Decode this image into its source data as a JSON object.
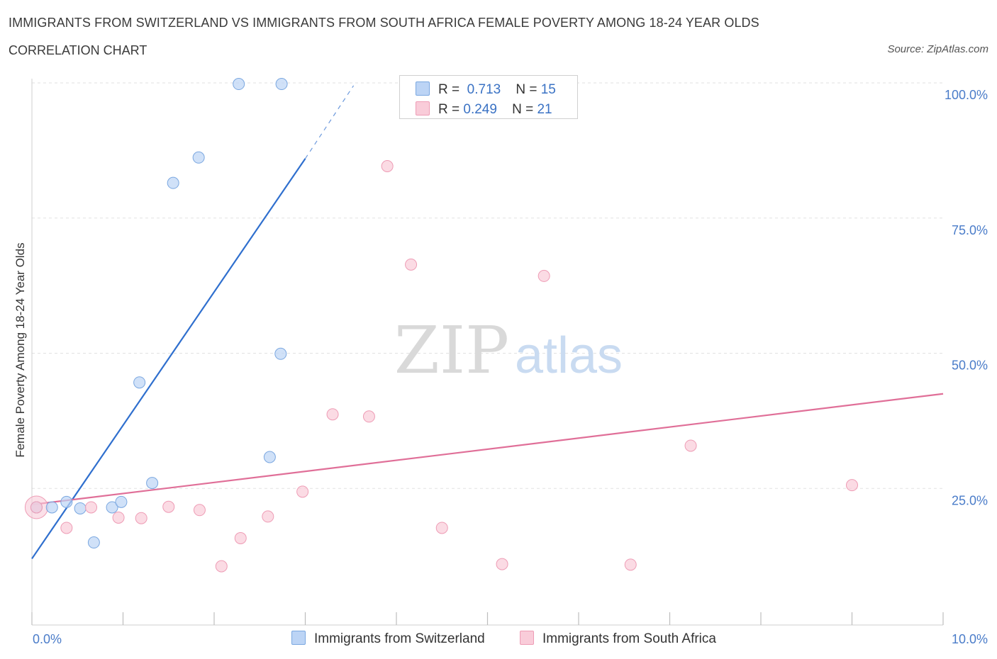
{
  "header": {
    "title": "IMMIGRANTS FROM SWITZERLAND VS IMMIGRANTS FROM SOUTH AFRICA FEMALE POVERTY AMONG 18-24 YEAR OLDS",
    "subtitle": "CORRELATION CHART",
    "source": "Source: ZipAtlas.com"
  },
  "watermark": {
    "zip": "ZIP",
    "atlas": "atlas"
  },
  "legend": {
    "r_label": "R =",
    "n_label": "N =",
    "series1": {
      "r": "0.713",
      "n": "15"
    },
    "series2": {
      "r": "0.249",
      "n": "21"
    }
  },
  "colors": {
    "switzerland_fill": "#bcd4f5",
    "switzerland_stroke": "#7aa7e0",
    "switzerland_line": "#2f6fce",
    "south_africa_fill": "#f9ccd9",
    "south_africa_stroke": "#ee9cb5",
    "south_africa_line": "#e06f98",
    "tick_text": "#4a7cc9"
  },
  "chart_data": {
    "type": "scatter",
    "title": "IMMIGRANTS FROM SWITZERLAND VS IMMIGRANTS FROM SOUTH AFRICA FEMALE POVERTY AMONG 18-24 YEAR OLDS",
    "xlabel": "",
    "ylabel": "Female Poverty Among 18-24 Year Olds",
    "xlim": [
      0,
      10
    ],
    "ylim": [
      0,
      100
    ],
    "x_tick_labels": [
      "0.0%",
      "10.0%"
    ],
    "y_tick_labels": [
      "100.0%",
      "75.0%",
      "50.0%",
      "25.0%"
    ],
    "y_ticks": [
      100,
      75,
      50,
      25
    ],
    "grid": true,
    "legend_placement": "top-center",
    "series": [
      {
        "name": "Immigrants from Switzerland",
        "r": 0.713,
        "n": 15,
        "points": [
          {
            "x": 0.05,
            "y": 21.5
          },
          {
            "x": 0.22,
            "y": 21.5
          },
          {
            "x": 0.38,
            "y": 22.5
          },
          {
            "x": 0.53,
            "y": 21.3
          },
          {
            "x": 0.68,
            "y": 15.0
          },
          {
            "x": 0.88,
            "y": 21.5
          },
          {
            "x": 0.98,
            "y": 22.5
          },
          {
            "x": 1.18,
            "y": 44.6
          },
          {
            "x": 1.32,
            "y": 26.0
          },
          {
            "x": 1.55,
            "y": 81.5
          },
          {
            "x": 1.83,
            "y": 86.2
          },
          {
            "x": 2.27,
            "y": 99.8
          },
          {
            "x": 2.61,
            "y": 30.8
          },
          {
            "x": 2.73,
            "y": 49.9
          },
          {
            "x": 2.74,
            "y": 99.8
          }
        ],
        "trend": {
          "x1": 0.0,
          "y1": 12.0,
          "x2": 3.0,
          "y2": 86.0,
          "dash_to_x": 3.53,
          "dash_to_y": 99.5
        }
      },
      {
        "name": "Immigrants from South Africa",
        "r": 0.249,
        "n": 21,
        "points": [
          {
            "x": 0.05,
            "y": 21.5
          },
          {
            "x": 0.38,
            "y": 17.7
          },
          {
            "x": 0.65,
            "y": 21.5
          },
          {
            "x": 0.95,
            "y": 19.6
          },
          {
            "x": 1.2,
            "y": 19.5
          },
          {
            "x": 1.5,
            "y": 21.6
          },
          {
            "x": 1.84,
            "y": 21.0
          },
          {
            "x": 2.08,
            "y": 10.6
          },
          {
            "x": 2.29,
            "y": 15.8
          },
          {
            "x": 2.59,
            "y": 19.8
          },
          {
            "x": 2.97,
            "y": 24.4
          },
          {
            "x": 3.3,
            "y": 38.7
          },
          {
            "x": 3.7,
            "y": 38.3
          },
          {
            "x": 3.9,
            "y": 84.6
          },
          {
            "x": 4.16,
            "y": 66.4
          },
          {
            "x": 4.5,
            "y": 17.7
          },
          {
            "x": 5.16,
            "y": 11.0
          },
          {
            "x": 5.62,
            "y": 64.3
          },
          {
            "x": 6.57,
            "y": 10.9
          },
          {
            "x": 7.23,
            "y": 32.9
          },
          {
            "x": 9.0,
            "y": 25.6
          }
        ],
        "trend": {
          "x1": 0.0,
          "y1": 22.0,
          "x2": 10.0,
          "y2": 42.5
        }
      }
    ]
  }
}
